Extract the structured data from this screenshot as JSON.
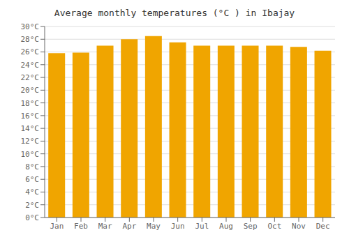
{
  "chart_data": {
    "type": "bar",
    "title": "Average monthly temperatures (°C ) in Ibajay",
    "categories": [
      "Jan",
      "Feb",
      "Mar",
      "Apr",
      "May",
      "Jun",
      "Jul",
      "Aug",
      "Sep",
      "Oct",
      "Nov",
      "Dec"
    ],
    "values": [
      25.8,
      25.9,
      27.0,
      28.0,
      28.5,
      27.5,
      27.0,
      27.0,
      27.0,
      27.0,
      26.8,
      26.2
    ],
    "color": "#F0A500",
    "ylim": [
      0,
      30
    ],
    "yticks": [
      {
        "value": 0,
        "label": "0°C"
      },
      {
        "value": 2,
        "label": "2°C"
      },
      {
        "value": 4,
        "label": "4°C"
      },
      {
        "value": 6,
        "label": "6°C"
      },
      {
        "value": 8,
        "label": "8°C"
      },
      {
        "value": 10,
        "label": "10°C"
      },
      {
        "value": 12,
        "label": "12°C"
      },
      {
        "value": 14,
        "label": "14°C"
      },
      {
        "value": 16,
        "label": "16°C"
      },
      {
        "value": 18,
        "label": "18°C"
      },
      {
        "value": 20,
        "label": "20°C"
      },
      {
        "value": 22,
        "label": "22°C"
      },
      {
        "value": 24,
        "label": "24°C"
      },
      {
        "value": 26,
        "label": "26°C"
      },
      {
        "value": 28,
        "label": "28°C"
      },
      {
        "value": 30,
        "label": "30°C"
      }
    ],
    "grid": true
  }
}
